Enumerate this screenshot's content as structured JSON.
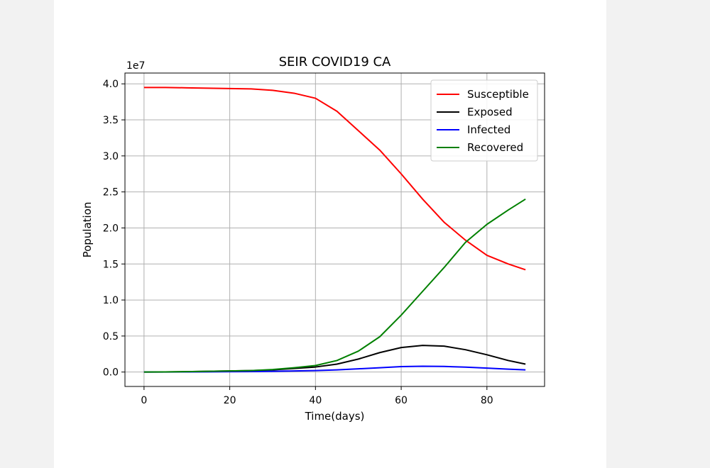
{
  "chart_data": {
    "type": "line",
    "title": "SEIR COVID19 CA",
    "xlabel": "Time(days)",
    "ylabel": "Population",
    "y_offset_label": "1e7",
    "xlim": [
      -4.45,
      93.45
    ],
    "ylim": [
      -0.2,
      4.15
    ],
    "x_ticks": [
      0,
      20,
      40,
      60,
      80
    ],
    "y_ticks": [
      0.0,
      0.5,
      1.0,
      1.5,
      2.0,
      2.5,
      3.0,
      3.5,
      4.0
    ],
    "x_tick_labels": [
      "0",
      "20",
      "40",
      "60",
      "80"
    ],
    "y_tick_labels": [
      "0.0",
      "0.5",
      "1.0",
      "1.5",
      "2.0",
      "2.5",
      "3.0",
      "3.5",
      "4.0"
    ],
    "grid": true,
    "legend_position": "top-right",
    "x": [
      0,
      5,
      10,
      15,
      20,
      25,
      30,
      35,
      40,
      45,
      50,
      55,
      60,
      65,
      70,
      75,
      80,
      85,
      89
    ],
    "series": [
      {
        "name": "Susceptible",
        "color": "#ff0000",
        "values": [
          3.95,
          3.95,
          3.945,
          3.94,
          3.935,
          3.93,
          3.91,
          3.87,
          3.8,
          3.62,
          3.35,
          3.08,
          2.75,
          2.4,
          2.08,
          1.83,
          1.62,
          1.5,
          1.42
        ]
      },
      {
        "name": "Exposed",
        "color": "#000000",
        "values": [
          0.0,
          0.002,
          0.005,
          0.01,
          0.015,
          0.02,
          0.03,
          0.05,
          0.07,
          0.11,
          0.18,
          0.27,
          0.34,
          0.37,
          0.36,
          0.31,
          0.24,
          0.16,
          0.11
        ]
      },
      {
        "name": "Infected",
        "color": "#0000ff",
        "values": [
          0.0,
          0.0,
          0.002,
          0.003,
          0.005,
          0.007,
          0.01,
          0.015,
          0.02,
          0.03,
          0.045,
          0.06,
          0.075,
          0.08,
          0.078,
          0.068,
          0.055,
          0.04,
          0.03
        ]
      },
      {
        "name": "Recovered",
        "color": "#008000",
        "values": [
          0.0,
          0.002,
          0.005,
          0.01,
          0.015,
          0.02,
          0.035,
          0.06,
          0.09,
          0.16,
          0.29,
          0.49,
          0.79,
          1.12,
          1.45,
          1.8,
          2.05,
          2.25,
          2.4
        ]
      }
    ]
  }
}
